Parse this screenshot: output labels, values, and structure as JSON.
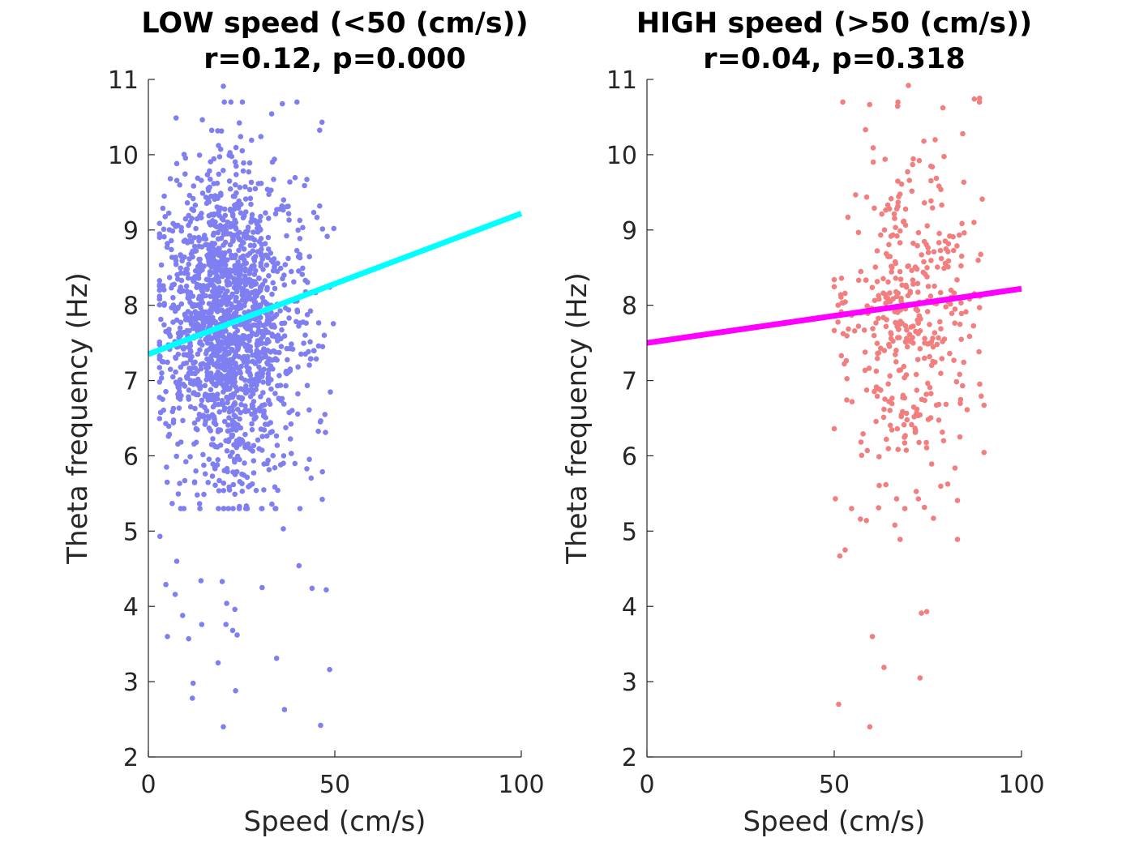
{
  "chart_data": [
    {
      "type": "scatter",
      "title": "LOW speed (<50 (cm/s))",
      "subtitle": "r=0.12, p=0.000",
      "xlabel": "Speed (cm/s)",
      "ylabel": "Theta frequency (Hz)",
      "xlim": [
        0,
        100
      ],
      "ylim": [
        2,
        11
      ],
      "xticks": [
        "0",
        "50",
        "100"
      ],
      "yticks": [
        "2",
        "3",
        "4",
        "5",
        "6",
        "7",
        "8",
        "9",
        "10",
        "11"
      ],
      "grid": false,
      "point_color": "#7f7ff2",
      "fit_line": {
        "x": [
          0,
          100
        ],
        "y": [
          7.35,
          9.22
        ],
        "color": "#00ffff"
      },
      "points": {
        "description": "dense cloud of individual recordings; speed range shown",
        "x_range": [
          3,
          50
        ],
        "y_range": [
          2.4,
          10.9
        ],
        "outliers": [
          {
            "x": 20.1,
            "y": 2.4
          },
          {
            "x": 36.5,
            "y": 2.63
          },
          {
            "x": 46.2,
            "y": 2.42
          },
          {
            "x": 23.4,
            "y": 2.88
          },
          {
            "x": 11.8,
            "y": 2.78
          },
          {
            "x": 12.0,
            "y": 2.98
          },
          {
            "x": 48.6,
            "y": 3.16
          },
          {
            "x": 18.7,
            "y": 3.25
          },
          {
            "x": 34.4,
            "y": 3.31
          },
          {
            "x": 5.1,
            "y": 3.6
          },
          {
            "x": 10.8,
            "y": 3.57
          },
          {
            "x": 23.8,
            "y": 3.62
          },
          {
            "x": 14.3,
            "y": 3.76
          },
          {
            "x": 20.8,
            "y": 3.76
          },
          {
            "x": 22.6,
            "y": 3.68
          },
          {
            "x": 9.2,
            "y": 3.88
          },
          {
            "x": 21.0,
            "y": 4.04
          },
          {
            "x": 23.2,
            "y": 3.96
          },
          {
            "x": 7.2,
            "y": 4.16
          },
          {
            "x": 4.7,
            "y": 4.29
          },
          {
            "x": 14.1,
            "y": 4.34
          },
          {
            "x": 19.8,
            "y": 4.33
          },
          {
            "x": 30.5,
            "y": 4.25
          },
          {
            "x": 43.9,
            "y": 4.24
          },
          {
            "x": 47.7,
            "y": 4.22
          },
          {
            "x": 40.4,
            "y": 4.54
          },
          {
            "x": 7.6,
            "y": 4.6
          },
          {
            "x": 36.2,
            "y": 5.03
          },
          {
            "x": 3.1,
            "y": 4.93
          },
          {
            "x": 20.1,
            "y": 10.91
          }
        ]
      }
    },
    {
      "type": "scatter",
      "title": "HIGH speed (>50 (cm/s))",
      "subtitle": "r=0.04, p=0.318",
      "xlabel": "Speed (cm/s)",
      "ylabel": "Theta frequency (Hz)",
      "xlim": [
        0,
        100
      ],
      "ylim": [
        2,
        11
      ],
      "xticks": [
        "0",
        "50",
        "100"
      ],
      "yticks": [
        "2",
        "3",
        "4",
        "5",
        "6",
        "7",
        "8",
        "9",
        "10",
        "11"
      ],
      "grid": false,
      "point_color": "#f27f7f",
      "fit_line": {
        "x": [
          0,
          100
        ],
        "y": [
          7.5,
          8.22
        ],
        "color": "#ff00ff"
      },
      "points": {
        "description": "sparser cloud of individual recordings; speed range shown",
        "x_range": [
          50,
          90
        ],
        "y_range": [
          2.4,
          10.9
        ],
        "outliers": [
          {
            "x": 59.5,
            "y": 2.4
          },
          {
            "x": 51.2,
            "y": 2.7
          },
          {
            "x": 72.9,
            "y": 3.05
          },
          {
            "x": 63.3,
            "y": 3.19
          },
          {
            "x": 60.2,
            "y": 3.6
          },
          {
            "x": 73.3,
            "y": 3.91
          },
          {
            "x": 74.7,
            "y": 3.93
          },
          {
            "x": 51.5,
            "y": 4.67
          },
          {
            "x": 52.9,
            "y": 4.75
          },
          {
            "x": 67.6,
            "y": 4.89
          },
          {
            "x": 82.9,
            "y": 4.89
          },
          {
            "x": 66.2,
            "y": 5.08
          },
          {
            "x": 57.0,
            "y": 5.16
          },
          {
            "x": 58.6,
            "y": 5.14
          },
          {
            "x": 76.5,
            "y": 5.17
          },
          {
            "x": 50.3,
            "y": 5.43
          },
          {
            "x": 69.8,
            "y": 10.92
          },
          {
            "x": 87.4,
            "y": 10.74
          },
          {
            "x": 88.8,
            "y": 10.75
          },
          {
            "x": 52.3,
            "y": 10.7
          }
        ]
      }
    }
  ]
}
